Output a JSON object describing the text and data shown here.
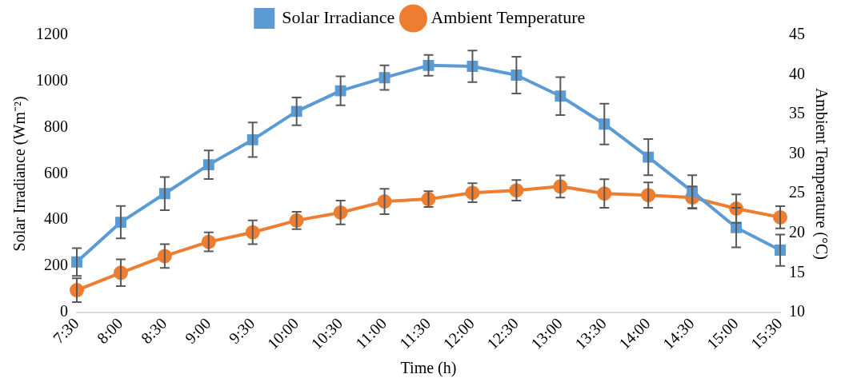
{
  "chart_data": {
    "type": "line",
    "xlabel": "Time (h)",
    "ylabel": "Solar Irradiance (Wm⁻²)",
    "y2label": "Ambient Temperature (°C)",
    "categories": [
      "7:30",
      "8:00",
      "8:30",
      "9:00",
      "9:30",
      "10:00",
      "10:30",
      "11:00",
      "11:30",
      "12:00",
      "12:30",
      "13:00",
      "13:30",
      "14:00",
      "14:30",
      "15:00",
      "15:30"
    ],
    "series": [
      {
        "name": "Solar Irradiance",
        "color": "#5b9bd5",
        "marker": "square",
        "values": [
          218,
          390,
          514,
          639,
          747,
          870,
          959,
          1016,
          1069,
          1065,
          1027,
          936,
          815,
          672,
          523,
          367,
          269
        ],
        "errors": [
          60,
          70,
          72,
          62,
          75,
          60,
          63,
          53,
          45,
          68,
          80,
          82,
          88,
          78,
          71,
          86,
          68
        ]
      },
      {
        "name": "Ambient Temperature",
        "color": "#ed7d31",
        "marker": "circle",
        "axis": "y2",
        "values": [
          12.8,
          15.0,
          17.1,
          18.9,
          20.1,
          21.6,
          22.6,
          24.0,
          24.3,
          25.1,
          25.4,
          25.9,
          25.0,
          24.8,
          24.5,
          23.1,
          22.0
        ],
        "errors": [
          1.5,
          1.7,
          1.5,
          1.2,
          1.5,
          1.1,
          1.5,
          1.6,
          1.0,
          1.2,
          1.3,
          1.4,
          1.8,
          1.6,
          1.4,
          1.8,
          1.4
        ]
      }
    ],
    "ylim": [
      0,
      1200
    ],
    "yticks": [
      0,
      200,
      400,
      600,
      800,
      1000,
      1200
    ],
    "y2lim": [
      10,
      45
    ],
    "y2ticks": [
      10,
      15,
      20,
      25,
      30,
      35,
      40,
      45
    ],
    "grid": false,
    "legend": "top",
    "line_style": "solid"
  }
}
